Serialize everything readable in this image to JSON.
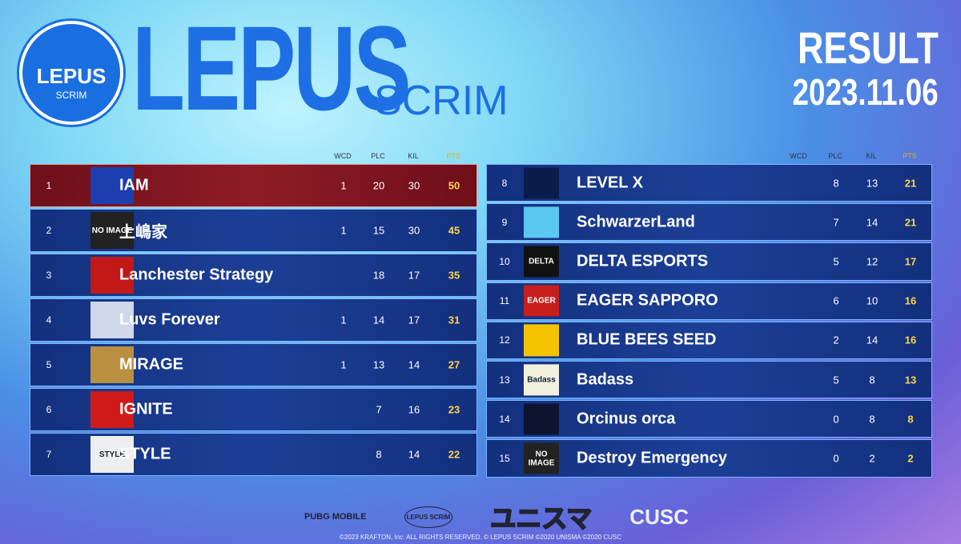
{
  "header": {
    "logo_top": "LEPUS",
    "logo_bottom": "SCRIM",
    "title": "LEPUS",
    "title_sub": "SCRIM",
    "result": "RESULT",
    "date": "2023.11.06"
  },
  "columns": [
    "WCD",
    "PLC",
    "KIL",
    "PTS"
  ],
  "left_table": {
    "rows": [
      {
        "rank": 1,
        "team": "IAM",
        "wcd": 1,
        "plc": 20,
        "kil": 30,
        "pts": 50
      },
      {
        "rank": 2,
        "team": "上嶋家",
        "logo_text": "NO IMAGE",
        "wcd": 1,
        "plc": 15,
        "kil": 30,
        "pts": 45
      },
      {
        "rank": 3,
        "team": "Lanchester Strategy",
        "wcd": null,
        "plc": 18,
        "kil": 17,
        "pts": 35
      },
      {
        "rank": 4,
        "team": "Luvs Forever",
        "wcd": 1,
        "plc": 14,
        "kil": 17,
        "pts": 31
      },
      {
        "rank": 5,
        "team": "MIRAGE",
        "wcd": 1,
        "plc": 13,
        "kil": 14,
        "pts": 27
      },
      {
        "rank": 6,
        "team": "IGNITE",
        "wcd": null,
        "plc": 7,
        "kil": 16,
        "pts": 23
      },
      {
        "rank": 7,
        "team": "STYLE",
        "logo_text": "STYLE",
        "wcd": null,
        "plc": 8,
        "kil": 14,
        "pts": 22
      }
    ]
  },
  "right_table": {
    "rows": [
      {
        "rank": 8,
        "team": "LEVEL X",
        "wcd": null,
        "plc": 8,
        "kil": 13,
        "pts": 21
      },
      {
        "rank": 9,
        "team": "SchwarzerLand",
        "wcd": null,
        "plc": 7,
        "kil": 14,
        "pts": 21
      },
      {
        "rank": 10,
        "team": "DELTA ESPORTS",
        "logo_text": "DELTA",
        "wcd": null,
        "plc": 5,
        "kil": 12,
        "pts": 17
      },
      {
        "rank": 11,
        "team": "EAGER SAPPORO",
        "logo_text": "EAGER",
        "wcd": null,
        "plc": 6,
        "kil": 10,
        "pts": 16
      },
      {
        "rank": 12,
        "team": "BLUE BEES SEED",
        "wcd": null,
        "plc": 2,
        "kil": 14,
        "pts": 16
      },
      {
        "rank": 13,
        "team": "Badass",
        "logo_text": "Badass",
        "wcd": null,
        "plc": 5,
        "kil": 8,
        "pts": 13
      },
      {
        "rank": 14,
        "team": "Orcinus orca",
        "wcd": null,
        "plc": 0,
        "kil": 8,
        "pts": 8
      },
      {
        "rank": 15,
        "team": "Destroy Emergency",
        "logo_text": "NO IMAGE",
        "wcd": null,
        "plc": 0,
        "kil": 2,
        "pts": 2
      }
    ]
  },
  "footer": {
    "sponsors": [
      "PUBG MOBILE",
      "LEPUS SCRIM",
      "ユニスマ",
      "CUSC"
    ],
    "copyright": "©2023 KRAFTON, Inc. ALL RIGHTS RESERVED. © LEPUS SCRIM ©2020 UNISMA ©2020 CUSC"
  }
}
